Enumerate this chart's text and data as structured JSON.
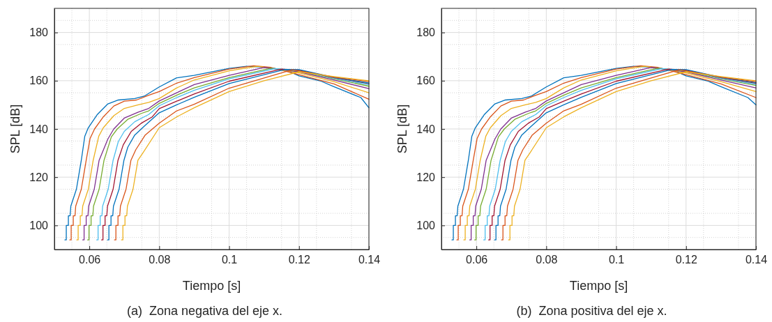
{
  "chart_data": [
    {
      "type": "line",
      "xlabel": "Tiempo [s]",
      "ylabel": "SPL [dB]",
      "xlim": [
        0.05,
        0.14
      ],
      "ylim": [
        90,
        190
      ],
      "xticks": [
        0.06,
        0.08,
        0.1,
        0.12,
        0.14
      ],
      "yticks": [
        100,
        120,
        140,
        160,
        180
      ],
      "grid": true,
      "line_style": "solid",
      "marker": "none",
      "annotations": [
        "(a)  Zona negativa del eje x."
      ],
      "series": [
        {
          "color": "#0072bd",
          "x": [
            0.053,
            0.0534,
            0.0534,
            0.054,
            0.054,
            0.0545,
            0.0547,
            0.0563,
            0.0577,
            0.0587,
            0.0597,
            0.0623,
            0.0653,
            0.0683,
            0.073,
            0.0757,
            0.08,
            0.085,
            0.09,
            0.1,
            0.105,
            0.11,
            0.1163,
            0.12,
            0.1263,
            0.13,
            0.1377,
            0.14
          ],
          "values": [
            94,
            94,
            100,
            100,
            104,
            104,
            108,
            115,
            127,
            137,
            140.5,
            146,
            150.4,
            152,
            152.6,
            153.6,
            157.4,
            161.2,
            162.2,
            165.1,
            166,
            165.6,
            164.4,
            162,
            159.8,
            157.5,
            153,
            148.8
          ]
        },
        {
          "color": "#d95319",
          "x": [
            0.0544,
            0.0548,
            0.0548,
            0.0554,
            0.0554,
            0.0559,
            0.0561,
            0.0577,
            0.0591,
            0.0602,
            0.0615,
            0.064,
            0.067,
            0.07,
            0.0735,
            0.077,
            0.08,
            0.085,
            0.09,
            0.1,
            0.107,
            0.112,
            0.12,
            0.13,
            0.14
          ],
          "values": [
            94,
            94,
            100,
            100,
            104,
            104,
            108,
            115,
            127,
            136,
            140,
            145,
            149.5,
            151.5,
            152,
            154,
            155.5,
            159,
            161.3,
            164.8,
            166.2,
            165.5,
            162.5,
            158.7,
            152.3
          ]
        },
        {
          "color": "#edb120",
          "x": [
            0.0564,
            0.0568,
            0.0568,
            0.0574,
            0.0574,
            0.0579,
            0.0581,
            0.0597,
            0.0611,
            0.0627,
            0.064,
            0.067,
            0.07,
            0.074,
            0.077,
            0.08,
            0.085,
            0.09,
            0.1,
            0.108,
            0.113,
            0.12,
            0.13,
            0.14
          ],
          "values": [
            94,
            94,
            100,
            100,
            104,
            104,
            108,
            115,
            127,
            137,
            140.5,
            145.5,
            148.5,
            150,
            151,
            152.6,
            157,
            160.3,
            164.1,
            166,
            165,
            163.2,
            159.6,
            155
          ]
        },
        {
          "color": "#7e2f8e",
          "x": [
            0.0581,
            0.0585,
            0.0585,
            0.0591,
            0.0591,
            0.0596,
            0.0598,
            0.0614,
            0.0628,
            0.0653,
            0.067,
            0.07,
            0.074,
            0.077,
            0.08,
            0.085,
            0.09,
            0.1,
            0.11,
            0.12,
            0.13,
            0.14
          ],
          "values": [
            94,
            94,
            100,
            100,
            104,
            104,
            108,
            115,
            127,
            135.8,
            140,
            144.5,
            147,
            148.5,
            151.6,
            155,
            158.4,
            162.2,
            165.5,
            163.7,
            160.3,
            156.7
          ]
        },
        {
          "color": "#77ac30",
          "x": [
            0.0595,
            0.0599,
            0.0599,
            0.0605,
            0.0605,
            0.061,
            0.0612,
            0.0628,
            0.0642,
            0.0663,
            0.068,
            0.071,
            0.075,
            0.077,
            0.08,
            0.085,
            0.09,
            0.1,
            0.112,
            0.12,
            0.13,
            0.14
          ],
          "values": [
            94,
            94,
            100,
            100,
            104,
            104,
            108,
            115,
            127,
            136.7,
            140,
            144,
            146.5,
            147.5,
            150.6,
            154,
            157,
            161.3,
            165.2,
            164,
            160.8,
            157.7
          ]
        },
        {
          "color": "#4dbeee",
          "x": [
            0.0621,
            0.0625,
            0.0625,
            0.0631,
            0.0631,
            0.0636,
            0.0638,
            0.0654,
            0.0668,
            0.0683,
            0.07,
            0.073,
            0.077,
            0.08,
            0.085,
            0.09,
            0.1,
            0.113,
            0.12,
            0.13,
            0.14
          ],
          "values": [
            94,
            94,
            100,
            100,
            104,
            104,
            108,
            115,
            127,
            134.8,
            139,
            143,
            146,
            149.6,
            153,
            156,
            160.8,
            165,
            164.2,
            161,
            158.3
          ]
        },
        {
          "color": "#a2142f",
          "x": [
            0.0635,
            0.0639,
            0.0639,
            0.0645,
            0.0645,
            0.065,
            0.0652,
            0.0668,
            0.0682,
            0.0697,
            0.072,
            0.075,
            0.078,
            0.08,
            0.085,
            0.09,
            0.1,
            0.115,
            0.12,
            0.13,
            0.14
          ],
          "values": [
            94,
            94,
            100,
            100,
            104,
            104,
            108,
            115,
            127,
            133.4,
            139,
            142.5,
            145,
            148.4,
            151.5,
            154.5,
            159.8,
            164.8,
            164.4,
            161.3,
            158.8
          ]
        },
        {
          "color": "#0072bd",
          "x": [
            0.0652,
            0.0656,
            0.0656,
            0.0662,
            0.0662,
            0.0667,
            0.0669,
            0.0685,
            0.0699,
            0.071,
            0.073,
            0.076,
            0.08,
            0.085,
            0.09,
            0.1,
            0.116,
            0.12,
            0.13,
            0.14
          ],
          "values": [
            94,
            94,
            100,
            100,
            104,
            104,
            108,
            115,
            127,
            132.4,
            137.5,
            141.5,
            146.7,
            150,
            153.1,
            158.8,
            164.7,
            164.6,
            161.4,
            159
          ]
        },
        {
          "color": "#d95319",
          "x": [
            0.0672,
            0.0676,
            0.0676,
            0.0682,
            0.0682,
            0.0687,
            0.0689,
            0.0705,
            0.0719,
            0.0733,
            0.076,
            0.08,
            0.085,
            0.09,
            0.1,
            0.118,
            0.12,
            0.13,
            0.14
          ],
          "values": [
            94,
            94,
            100,
            100,
            104,
            104,
            108,
            115,
            127,
            131.4,
            137.5,
            142.4,
            147.5,
            150.2,
            156.9,
            164.5,
            164.1,
            161.5,
            159.6
          ]
        },
        {
          "color": "#edb120",
          "x": [
            0.0692,
            0.0696,
            0.0696,
            0.0702,
            0.0702,
            0.0707,
            0.0709,
            0.0725,
            0.0739,
            0.0753,
            0.08,
            0.085,
            0.09,
            0.1,
            0.11,
            0.12,
            0.13,
            0.14
          ],
          "values": [
            94,
            94,
            100,
            100,
            104,
            104,
            108,
            115,
            127,
            130,
            140.5,
            145,
            148.8,
            155.5,
            160,
            163.7,
            161.7,
            160
          ]
        }
      ]
    },
    {
      "type": "line",
      "xlabel": "Tiempo [s]",
      "ylabel": "SPL [dB]",
      "xlim": [
        0.05,
        0.14
      ],
      "ylim": [
        90,
        190
      ],
      "xticks": [
        0.06,
        0.08,
        0.1,
        0.12,
        0.14
      ],
      "yticks": [
        100,
        120,
        140,
        160,
        180
      ],
      "grid": true,
      "line_style": "solid",
      "marker": "none",
      "annotations": [
        "(b)  Zona positiva del eje x."
      ],
      "series": [
        {
          "color": "#0072bd",
          "x": [
            0.053,
            0.0534,
            0.0534,
            0.054,
            0.054,
            0.0545,
            0.0547,
            0.0563,
            0.0577,
            0.0587,
            0.0597,
            0.0623,
            0.0653,
            0.0683,
            0.073,
            0.0757,
            0.08,
            0.085,
            0.09,
            0.1,
            0.105,
            0.11,
            0.1163,
            0.12,
            0.1263,
            0.13,
            0.1377,
            0.14
          ],
          "values": [
            94,
            94,
            100,
            100,
            104,
            104,
            108,
            115,
            127,
            137,
            140.5,
            146,
            150.4,
            152,
            152.6,
            153.6,
            157.4,
            161.2,
            162.2,
            165.1,
            166,
            165.6,
            164.4,
            162,
            159.8,
            157.5,
            153,
            150
          ]
        },
        {
          "color": "#d95319",
          "x": [
            0.0544,
            0.0548,
            0.0548,
            0.0554,
            0.0554,
            0.0559,
            0.0561,
            0.0577,
            0.0591,
            0.0602,
            0.0615,
            0.064,
            0.067,
            0.07,
            0.0735,
            0.077,
            0.08,
            0.085,
            0.09,
            0.1,
            0.107,
            0.112,
            0.12,
            0.13,
            0.14
          ],
          "values": [
            94,
            94,
            100,
            100,
            104,
            104,
            108,
            115,
            127,
            136,
            140,
            145,
            149.5,
            151.5,
            152,
            154,
            155.5,
            159,
            161.3,
            164.8,
            166.2,
            165.5,
            162.5,
            158.7,
            153
          ]
        },
        {
          "color": "#edb120",
          "x": [
            0.0564,
            0.0568,
            0.0568,
            0.0574,
            0.0574,
            0.0579,
            0.0581,
            0.0597,
            0.0611,
            0.0627,
            0.064,
            0.067,
            0.07,
            0.074,
            0.077,
            0.08,
            0.085,
            0.09,
            0.1,
            0.108,
            0.113,
            0.12,
            0.13,
            0.14
          ],
          "values": [
            94,
            94,
            100,
            100,
            104,
            104,
            108,
            115,
            127,
            137,
            140.5,
            145.5,
            148.5,
            150,
            151,
            152.6,
            157,
            160.3,
            164.1,
            166,
            165,
            163.2,
            159.6,
            155.5
          ]
        },
        {
          "color": "#7e2f8e",
          "x": [
            0.0581,
            0.0585,
            0.0585,
            0.0591,
            0.0591,
            0.0596,
            0.0598,
            0.0614,
            0.0628,
            0.0653,
            0.067,
            0.07,
            0.074,
            0.077,
            0.08,
            0.085,
            0.09,
            0.1,
            0.11,
            0.12,
            0.13,
            0.14
          ],
          "values": [
            94,
            94,
            100,
            100,
            104,
            104,
            108,
            115,
            127,
            135.8,
            140,
            144.5,
            147,
            148.5,
            151.6,
            155,
            158.4,
            162.2,
            165.5,
            163.7,
            160.3,
            157
          ]
        },
        {
          "color": "#77ac30",
          "x": [
            0.0595,
            0.0599,
            0.0599,
            0.0605,
            0.0605,
            0.061,
            0.0612,
            0.0628,
            0.0642,
            0.0663,
            0.068,
            0.071,
            0.075,
            0.077,
            0.08,
            0.085,
            0.09,
            0.1,
            0.112,
            0.12,
            0.13,
            0.14
          ],
          "values": [
            94,
            94,
            100,
            100,
            104,
            104,
            108,
            115,
            127,
            136.7,
            140,
            144,
            146.5,
            147.5,
            150.6,
            154,
            157,
            161.3,
            165.2,
            164,
            160.8,
            158
          ]
        },
        {
          "color": "#4dbeee",
          "x": [
            0.0621,
            0.0625,
            0.0625,
            0.0631,
            0.0631,
            0.0636,
            0.0638,
            0.0654,
            0.0668,
            0.0683,
            0.07,
            0.073,
            0.077,
            0.08,
            0.085,
            0.09,
            0.1,
            0.113,
            0.12,
            0.13,
            0.14
          ],
          "values": [
            94,
            94,
            100,
            100,
            104,
            104,
            108,
            115,
            127,
            134.8,
            139,
            143,
            146,
            149.6,
            153,
            156,
            160.8,
            165,
            164.2,
            161,
            158.5
          ]
        },
        {
          "color": "#a2142f",
          "x": [
            0.0635,
            0.0639,
            0.0639,
            0.0645,
            0.0645,
            0.065,
            0.0652,
            0.0668,
            0.0682,
            0.0697,
            0.072,
            0.075,
            0.078,
            0.08,
            0.085,
            0.09,
            0.1,
            0.115,
            0.12,
            0.13,
            0.14
          ],
          "values": [
            94,
            94,
            100,
            100,
            104,
            104,
            108,
            115,
            127,
            133.4,
            139,
            142.5,
            145,
            148.4,
            151.5,
            154.5,
            159.8,
            164.8,
            164.4,
            161.3,
            159
          ]
        },
        {
          "color": "#0072bd",
          "x": [
            0.0652,
            0.0656,
            0.0656,
            0.0662,
            0.0662,
            0.0667,
            0.0669,
            0.0685,
            0.0699,
            0.071,
            0.073,
            0.076,
            0.08,
            0.085,
            0.09,
            0.1,
            0.116,
            0.12,
            0.13,
            0.14
          ],
          "values": [
            94,
            94,
            100,
            100,
            104,
            104,
            108,
            115,
            127,
            132.4,
            137.5,
            141.5,
            146.7,
            150,
            153.1,
            158.8,
            164.7,
            164.6,
            161.4,
            159.2
          ]
        },
        {
          "color": "#d95319",
          "x": [
            0.0672,
            0.0676,
            0.0676,
            0.0682,
            0.0682,
            0.0687,
            0.0689,
            0.0705,
            0.0719,
            0.0733,
            0.076,
            0.08,
            0.085,
            0.09,
            0.1,
            0.118,
            0.12,
            0.13,
            0.14
          ],
          "values": [
            94,
            94,
            100,
            100,
            104,
            104,
            108,
            115,
            127,
            131.4,
            137.5,
            142.4,
            147.5,
            150.2,
            156.9,
            164.5,
            164.1,
            161.5,
            159.6
          ]
        },
        {
          "color": "#edb120",
          "x": [
            0.0692,
            0.0696,
            0.0696,
            0.0702,
            0.0702,
            0.0707,
            0.0709,
            0.0725,
            0.0739,
            0.0753,
            0.08,
            0.085,
            0.09,
            0.1,
            0.11,
            0.12,
            0.13,
            0.14
          ],
          "values": [
            94,
            94,
            100,
            100,
            104,
            104,
            108,
            115,
            127,
            130,
            140.5,
            145,
            148.8,
            155.5,
            160,
            163.7,
            161.7,
            160
          ]
        }
      ]
    }
  ]
}
